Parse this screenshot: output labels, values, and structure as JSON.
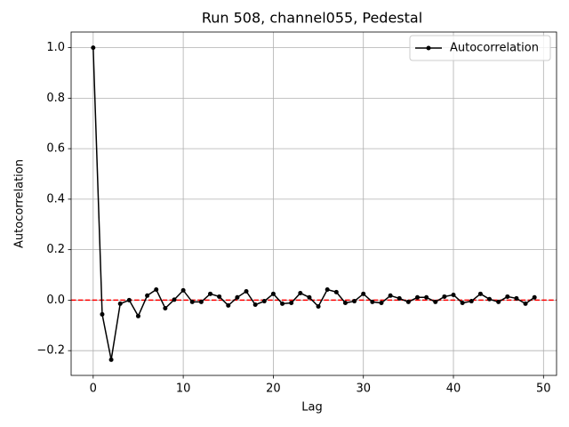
{
  "chart_data": {
    "type": "line",
    "title": "Run 508, channel055, Pedestal",
    "xlabel": "Lag",
    "ylabel": "Autocorrelation",
    "x": [
      0,
      1,
      2,
      3,
      4,
      5,
      6,
      7,
      8,
      9,
      10,
      11,
      12,
      13,
      14,
      15,
      16,
      17,
      18,
      19,
      20,
      21,
      22,
      23,
      24,
      25,
      26,
      27,
      28,
      29,
      30,
      31,
      32,
      33,
      34,
      35,
      36,
      37,
      38,
      39,
      40,
      41,
      42,
      43,
      44,
      45,
      46,
      47,
      48,
      49
    ],
    "series": [
      {
        "name": "Autocorrelation",
        "color": "#000000",
        "values": [
          1.0,
          -0.056,
          -0.236,
          -0.014,
          0.0,
          -0.063,
          0.018,
          0.042,
          -0.032,
          0.002,
          0.039,
          -0.007,
          -0.007,
          0.025,
          0.014,
          -0.021,
          0.011,
          0.035,
          -0.018,
          -0.004,
          0.025,
          -0.014,
          -0.011,
          0.028,
          0.011,
          -0.025,
          0.042,
          0.032,
          -0.011,
          -0.004,
          0.025,
          -0.007,
          -0.011,
          0.018,
          0.007,
          -0.007,
          0.011,
          0.011,
          -0.007,
          0.014,
          0.021,
          -0.011,
          -0.004,
          0.025,
          0.004,
          -0.007,
          0.014,
          0.007,
          -0.014,
          0.011
        ]
      }
    ],
    "xlim": [
      -2.45,
      51.45
    ],
    "ylim": [
      -0.298,
      1.062
    ],
    "xticks": [
      0,
      10,
      20,
      30,
      40,
      50
    ],
    "yticks": [
      {
        "value": -0.2,
        "label": "−0.2"
      },
      {
        "value": 0,
        "label": "0.0"
      },
      0.2,
      0.4,
      0.6,
      0.8,
      {
        "value": 1,
        "label": "1.0"
      }
    ],
    "grid": true,
    "legend": "upper right",
    "reference_line": {
      "y": 0,
      "color": "#ff0000",
      "style": "dashed"
    }
  }
}
